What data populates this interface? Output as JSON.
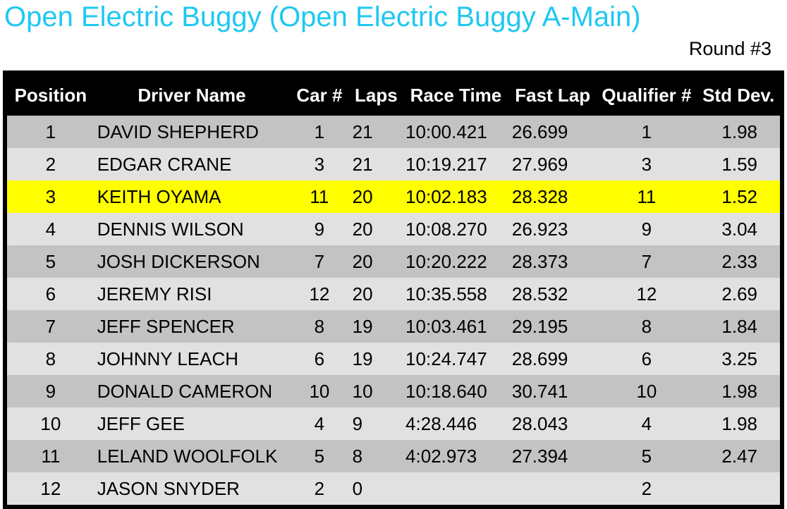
{
  "header": {
    "title": "Open Electric Buggy (Open Electric Buggy A-Main)",
    "round": "Round #3"
  },
  "table": {
    "columns": [
      "Position",
      "Driver Name",
      "Car #",
      "Laps",
      "Race Time",
      "Fast Lap",
      "Qualifier #",
      "Std Dev."
    ],
    "rows": [
      [
        "1",
        "DAVID SHEPHERD",
        "1",
        "21",
        "10:00.421",
        "26.699",
        "1",
        "1.98"
      ],
      [
        "2",
        "EDGAR CRANE",
        "3",
        "21",
        "10:19.217",
        "27.969",
        "3",
        "1.59"
      ],
      [
        "3",
        "KEITH OYAMA",
        "11",
        "20",
        "10:02.183",
        "28.328",
        "11",
        "1.52"
      ],
      [
        "4",
        "DENNIS WILSON",
        "9",
        "20",
        "10:08.270",
        "26.923",
        "9",
        "3.04"
      ],
      [
        "5",
        "JOSH DICKERSON",
        "7",
        "20",
        "10:20.222",
        "28.373",
        "7",
        "2.33"
      ],
      [
        "6",
        "JEREMY RISI",
        "12",
        "20",
        "10:35.558",
        "28.532",
        "12",
        "2.69"
      ],
      [
        "7",
        "JEFF SPENCER",
        "8",
        "19",
        "10:03.461",
        "29.195",
        "8",
        "1.84"
      ],
      [
        "8",
        "JOHNNY LEACH",
        "6",
        "19",
        "10:24.747",
        "28.699",
        "6",
        "3.25"
      ],
      [
        "9",
        "DONALD CAMERON",
        "10",
        "10",
        "10:18.640",
        "30.741",
        "10",
        "1.98"
      ],
      [
        "10",
        "JEFF GEE",
        "4",
        "9",
        "4:28.446",
        "28.043",
        "4",
        "1.98"
      ],
      [
        "11",
        "LELAND WOOLFOLK",
        "5",
        "8",
        "4:02.973",
        "27.394",
        "5",
        "2.47"
      ],
      [
        "12",
        "JASON SNYDER",
        "2",
        "0",
        null,
        null,
        "2",
        null
      ]
    ]
  }
}
